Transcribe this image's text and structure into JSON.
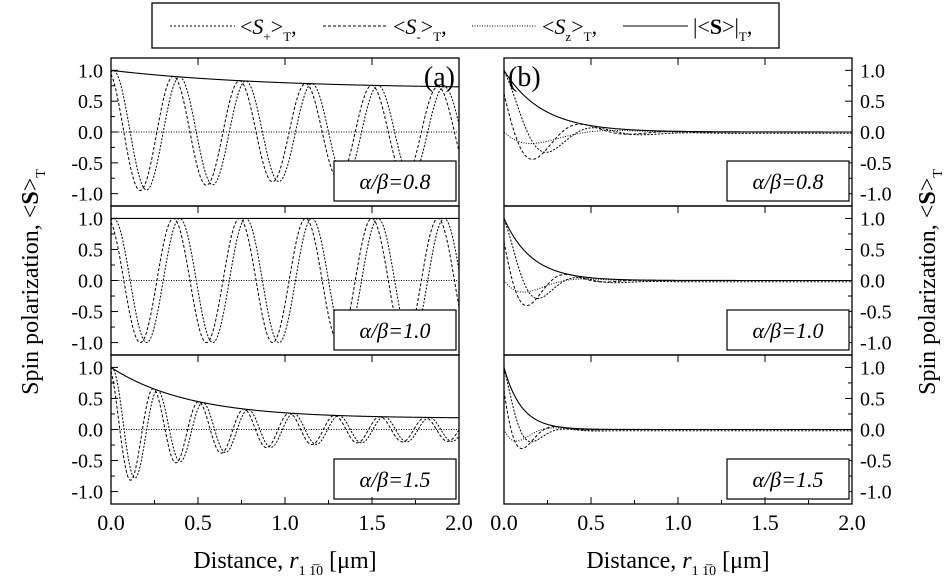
{
  "legend": {
    "entries": [
      {
        "key": "splus",
        "base": "<S",
        "sub": "+",
        "tail": ">",
        "tsub": "T",
        "comma": ",",
        "dash": "2,2"
      },
      {
        "key": "sminus",
        "base": "<S",
        "sub": "-",
        "tail": ">",
        "tsub": "T",
        "comma": ",",
        "dash": "3,2"
      },
      {
        "key": "sz",
        "base": "<S",
        "sub": "z",
        "tail": ">",
        "tsub": "T",
        "comma": ",",
        "dash": "1,1.5"
      },
      {
        "key": "smag",
        "base": "|<S>|",
        "sub": "",
        "tail": "",
        "tsub": "T",
        "comma": ",",
        "dash": ""
      }
    ]
  },
  "axes": {
    "xlabel_prefix": "Distance, ",
    "xlabel_var": "r",
    "xlabel_sub": "1 1̅0",
    "xlabel_unit": " [μm]",
    "ylabel_text": "Spin polarization, ",
    "ylabel_sym": "<S>",
    "ylabel_sub": "T",
    "xticks": [
      "0.0",
      "0.5",
      "1.0",
      "1.5",
      "2.0"
    ],
    "yticks": [
      "1.0",
      "0.5",
      "0.0",
      "-0.5",
      "-1.0"
    ]
  },
  "panel_labels": [
    "(a)",
    "(b)"
  ],
  "ratio_labels": [
    "α/β=0.8",
    "α/β=1.0",
    "α/β=1.5"
  ],
  "chart_data": {
    "type": "line",
    "xlim": [
      0,
      2.0
    ],
    "ylim": [
      -1.2,
      1.2
    ],
    "grid": false,
    "legend_position": "top",
    "panels": [
      {
        "label": "(a)",
        "ratio": 0.8,
        "period": 0.38,
        "decay": 4.5,
        "n": 1,
        "series": [
          "<S+>T",
          "<S->T",
          "<Sz>T",
          "|<S>|T"
        ]
      },
      {
        "label": "(a)",
        "ratio": 1.0,
        "period": 0.38,
        "decay": 0,
        "n": 1,
        "series": [
          "<S+>T",
          "<S->T",
          "<Sz>T",
          "|<S>|T"
        ]
      },
      {
        "label": "(a)",
        "ratio": 1.5,
        "period": 0.26,
        "decay": 1.2,
        "n": 1,
        "series": [
          "<S+>T",
          "<S->T",
          "<Sz>T",
          "|<S>|T"
        ]
      },
      {
        "label": "(b)",
        "ratio": 0.8,
        "period": 0.55,
        "decay": 0.22,
        "n": 1,
        "series": [
          "<S+>T",
          "<S->T",
          "<Sz>T",
          "|<S>|T"
        ]
      },
      {
        "label": "(b)",
        "ratio": 1.0,
        "period": 0.45,
        "decay": 0.16,
        "n": 1,
        "series": [
          "<S+>T",
          "<S->T",
          "<Sz>T",
          "|<S>|T"
        ]
      },
      {
        "label": "(b)",
        "ratio": 1.5,
        "period": 0.38,
        "decay": 0.1,
        "n": 1,
        "series": [
          "<S+>T",
          "<S->T",
          "<Sz>T",
          "|<S>|T"
        ]
      }
    ]
  }
}
